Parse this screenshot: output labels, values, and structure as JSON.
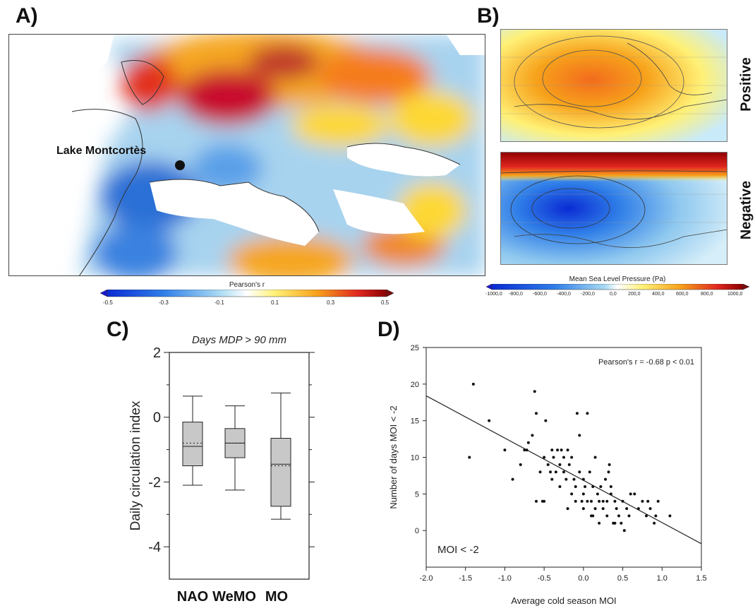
{
  "panels": {
    "a": "A)",
    "b": "B)",
    "c": "C)",
    "d": "D)"
  },
  "map_a": {
    "location_label": "Lake Montcortès",
    "colorbar_title": "Pearson's r",
    "colorbar_ticks": [
      "-0.5",
      "-0.3",
      "-0.1",
      "0.1",
      "0.3",
      "0.5"
    ]
  },
  "map_b": {
    "positive_label": "Positive",
    "negative_label": "Negative",
    "colorbar_title": "Mean Sea Level Pressure (Pa)",
    "colorbar_ticks": [
      "-1000,0",
      "-800,0",
      "-600,0",
      "-400,0",
      "-200,0",
      "0,0",
      "200,0",
      "400,0",
      "600,0",
      "800,0",
      "1000,0"
    ]
  },
  "chart_data": [
    {
      "type": "boxplot",
      "title": "Days MDP > 90 mm",
      "ylabel": "Daily circulation index",
      "ylim": [
        -5,
        2
      ],
      "yticks": [
        "2",
        "0",
        "-2",
        "-4"
      ],
      "categories": [
        "NAO",
        "WeMO",
        "MO"
      ],
      "boxes": [
        {
          "name": "NAO",
          "whisker_low": -2.1,
          "q1": -1.5,
          "median": -0.9,
          "mean": -0.8,
          "q3": -0.15,
          "whisker_high": 0.65
        },
        {
          "name": "WeMO",
          "whisker_low": -2.25,
          "q1": -1.25,
          "median": -0.8,
          "mean": -0.8,
          "q3": -0.35,
          "whisker_high": 0.35
        },
        {
          "name": "MO",
          "whisker_low": -3.15,
          "q1": -2.75,
          "median": -1.45,
          "mean": -1.5,
          "q3": -0.65,
          "whisker_high": 0.75
        }
      ]
    },
    {
      "type": "scatter",
      "xlabel": "Average cold season MOI",
      "ylabel": "Number of days MOI < -2",
      "xlim": [
        -2.0,
        1.5
      ],
      "ylim": [
        -5,
        25
      ],
      "xticks": [
        "-2.0",
        "-1.5",
        "-1.0",
        "-0.5",
        "0.0",
        "0.5",
        "1.0",
        "1.5"
      ],
      "yticks": [
        "25",
        "20",
        "15",
        "10",
        "5",
        "0"
      ],
      "annotation": "Pearson's r = -0.68 p < 0.01",
      "corner_label": "MOI < -2",
      "regression": {
        "x": [
          -2.0,
          1.5
        ],
        "y": [
          18.4,
          -1.8
        ]
      },
      "points": [
        [
          -1.4,
          20
        ],
        [
          -1.45,
          10
        ],
        [
          -1.2,
          15
        ],
        [
          -1.0,
          11
        ],
        [
          -0.9,
          7
        ],
        [
          -0.8,
          9
        ],
        [
          -0.75,
          11
        ],
        [
          -0.72,
          11
        ],
        [
          -0.7,
          12
        ],
        [
          -0.65,
          13
        ],
        [
          -0.62,
          19
        ],
        [
          -0.6,
          16
        ],
        [
          -0.55,
          8
        ],
        [
          -0.52,
          4
        ],
        [
          -0.5,
          4
        ],
        [
          -0.5,
          10
        ],
        [
          -0.48,
          15
        ],
        [
          -0.45,
          9
        ],
        [
          -0.42,
          8
        ],
        [
          -0.4,
          11
        ],
        [
          -0.4,
          7
        ],
        [
          -0.38,
          10
        ],
        [
          -0.35,
          8
        ],
        [
          -0.33,
          11
        ],
        [
          -0.3,
          9
        ],
        [
          -0.3,
          6
        ],
        [
          -0.28,
          11
        ],
        [
          -0.25,
          10
        ],
        [
          -0.25,
          8
        ],
        [
          -0.22,
          7
        ],
        [
          -0.2,
          11
        ],
        [
          -0.2,
          3
        ],
        [
          -0.18,
          9
        ],
        [
          -0.15,
          10
        ],
        [
          -0.12,
          7
        ],
        [
          -0.1,
          6
        ],
        [
          -0.1,
          4
        ],
        [
          -0.08,
          16
        ],
        [
          -0.05,
          13
        ],
        [
          -0.05,
          8
        ],
        [
          -0.02,
          4
        ],
        [
          0.0,
          7
        ],
        [
          0.0,
          5
        ],
        [
          0.02,
          6
        ],
        [
          0.05,
          16
        ],
        [
          0.05,
          4
        ],
        [
          0.08,
          8
        ],
        [
          0.1,
          4
        ],
        [
          0.1,
          2
        ],
        [
          0.12,
          6
        ],
        [
          0.15,
          10
        ],
        [
          0.15,
          3
        ],
        [
          0.18,
          5
        ],
        [
          0.2,
          4
        ],
        [
          0.2,
          1
        ],
        [
          0.22,
          6
        ],
        [
          0.25,
          3
        ],
        [
          0.28,
          7
        ],
        [
          0.3,
          4
        ],
        [
          0.3,
          2
        ],
        [
          0.32,
          8
        ],
        [
          0.33,
          9
        ],
        [
          0.35,
          6
        ],
        [
          0.35,
          5
        ],
        [
          0.38,
          1
        ],
        [
          0.4,
          4
        ],
        [
          0.42,
          3
        ],
        [
          0.45,
          2
        ],
        [
          0.48,
          1
        ],
        [
          0.5,
          4
        ],
        [
          0.52,
          0
        ],
        [
          0.55,
          3
        ],
        [
          0.6,
          5
        ],
        [
          0.65,
          5
        ],
        [
          0.7,
          3
        ],
        [
          0.75,
          4
        ],
        [
          0.8,
          2
        ],
        [
          0.82,
          4
        ],
        [
          0.85,
          3
        ],
        [
          0.9,
          1
        ],
        [
          0.92,
          2
        ],
        [
          0.95,
          4
        ],
        [
          1.1,
          2
        ],
        [
          -0.6,
          4
        ],
        [
          0.0,
          3
        ],
        [
          0.12,
          2
        ],
        [
          0.25,
          4
        ],
        [
          0.4,
          1
        ],
        [
          -0.15,
          5
        ],
        [
          0.58,
          2
        ]
      ]
    }
  ]
}
